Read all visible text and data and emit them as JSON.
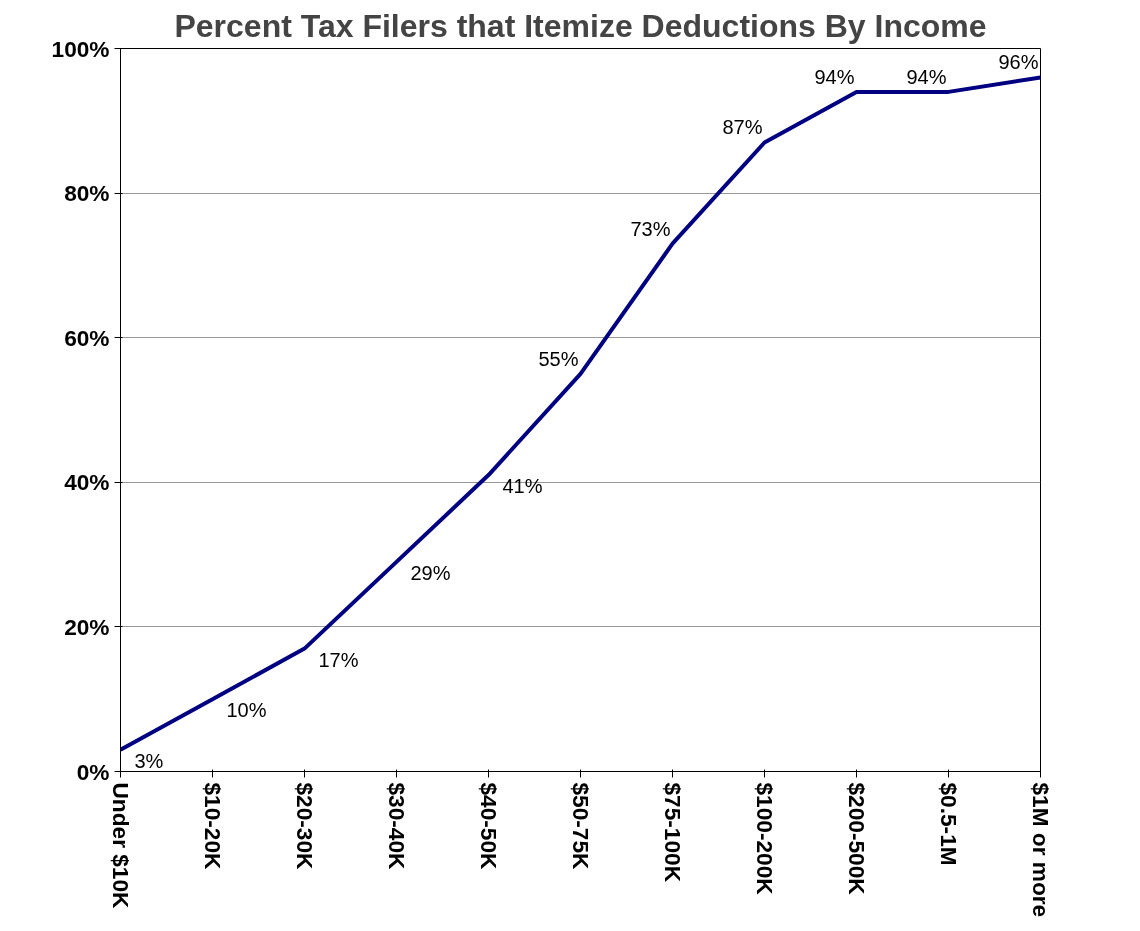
{
  "chart_data": {
    "type": "line",
    "title": "Percent Tax Filers that Itemize Deductions By Income",
    "categories": [
      "Under $10K",
      "$10-20K",
      "$20-30K",
      "$30-40K",
      "$40-50K",
      "$50-75K",
      "$75-100K",
      "$100-200K",
      "$200-500K",
      "$0.5-1M",
      "$1M or more"
    ],
    "series": [
      {
        "color": "#000080",
        "values": [
          3,
          10,
          17,
          29,
          41,
          55,
          73,
          87,
          94,
          94,
          96
        ],
        "value_labels": [
          "3%",
          "10%",
          "17%",
          "29%",
          "41%",
          "55%",
          "73%",
          "87%",
          "94%",
          "94%",
          "96%"
        ]
      }
    ],
    "ylim": [
      0,
      100
    ],
    "yticks": [
      {
        "value": 0,
        "label": "0%"
      },
      {
        "value": 20,
        "label": "20%"
      },
      {
        "value": 40,
        "label": "40%"
      },
      {
        "value": 60,
        "label": "60%"
      },
      {
        "value": 80,
        "label": "80%"
      },
      {
        "value": 100,
        "label": "100%"
      }
    ],
    "grid": "y",
    "marker": "none",
    "line_style": "solid"
  }
}
